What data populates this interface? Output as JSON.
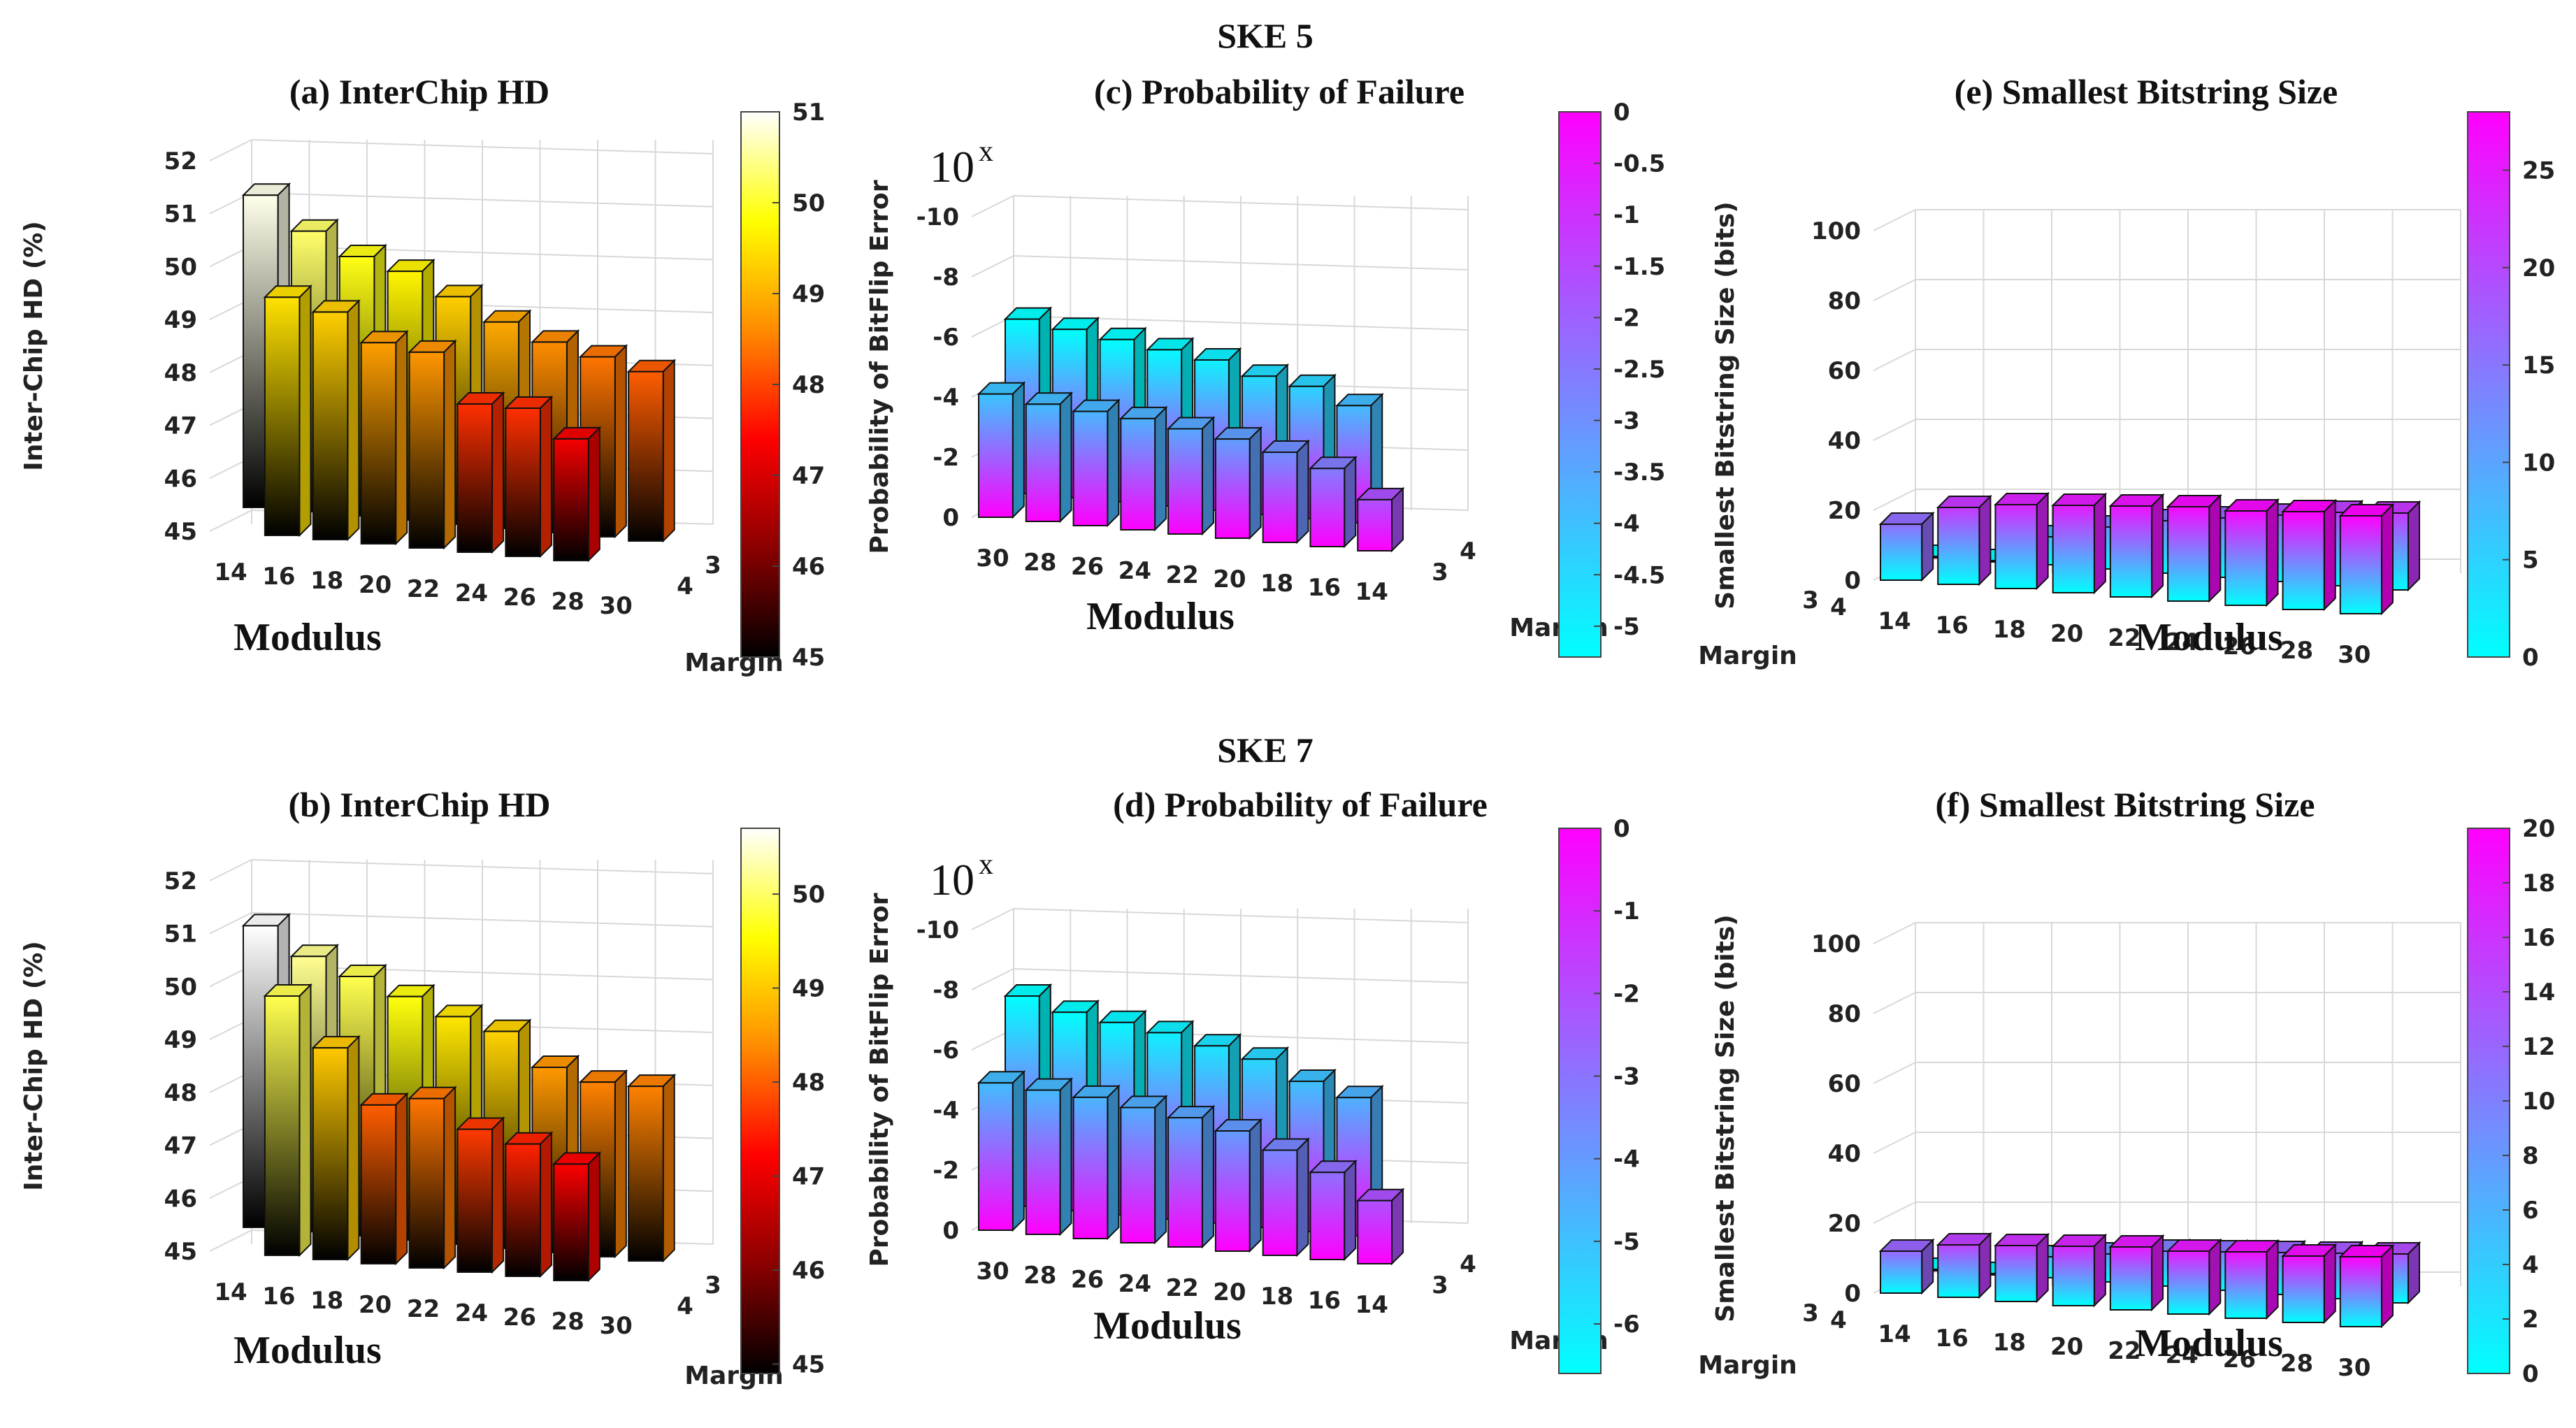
{
  "figure": {
    "group_titles": [
      "SKE 5",
      "SKE 7"
    ],
    "power_label": "10",
    "power_exponent": "x"
  },
  "colors": {
    "hot": [
      "#000000",
      "#8b0000",
      "#ff0000",
      "#ff8c00",
      "#ffff00",
      "#ffffff"
    ],
    "cool": [
      "#00ffff",
      "#ff00ff"
    ],
    "edge": "#111111",
    "grid": "#d8d8d8",
    "text": "#111111"
  },
  "chart_data": [
    {
      "id": "a",
      "type": "bar3d",
      "colormap": "hot",
      "title": "(a) InterChip HD",
      "xlabel": "Modulus",
      "ylabel": "Inter-Chip HD (%)",
      "zlabel": "Margin",
      "moduli": [
        "14",
        "16",
        "18",
        "20",
        "22",
        "24",
        "26",
        "28",
        "30"
      ],
      "margins": [
        "4",
        "3"
      ],
      "zlim": [
        45,
        52
      ],
      "zticks": [
        "45",
        "46",
        "47",
        "48",
        "49",
        "50",
        "51",
        "52"
      ],
      "series": [
        {
          "name": "Margin 3",
          "values": [
            50.9,
            50.3,
            49.9,
            49.7,
            49.3,
            48.9,
            48.6,
            48.4,
            48.2
          ]
        },
        {
          "name": "Margin 4",
          "values": [
            null,
            49.5,
            49.3,
            48.8,
            48.7,
            47.8,
            47.8,
            47.3,
            null
          ]
        }
      ],
      "colorbar": {
        "ticks": [
          "51",
          "50",
          "49",
          "48",
          "47",
          "46",
          "45"
        ],
        "min": 45,
        "max": 51
      }
    },
    {
      "id": "b",
      "type": "bar3d",
      "colormap": "hot",
      "title": "(b) InterChip HD",
      "xlabel": "Modulus",
      "ylabel": "Inter-Chip HD (%)",
      "zlabel": "Margin",
      "moduli": [
        "14",
        "16",
        "18",
        "20",
        "22",
        "24",
        "26",
        "28",
        "30"
      ],
      "margins": [
        "4",
        "3"
      ],
      "zlim": [
        45,
        52
      ],
      "zticks": [
        "45",
        "46",
        "47",
        "48",
        "49",
        "50",
        "51",
        "52"
      ],
      "series": [
        {
          "name": "Margin 3",
          "values": [
            50.7,
            50.2,
            49.9,
            49.6,
            49.3,
            49.1,
            48.5,
            48.3,
            48.3
          ]
        },
        {
          "name": "Margin 4",
          "values": [
            null,
            49.9,
            49.0,
            48.0,
            48.2,
            47.7,
            47.5,
            47.2,
            null
          ]
        }
      ],
      "colorbar": {
        "ticks": [
          "50",
          "49",
          "48",
          "47",
          "46",
          "45"
        ],
        "min": 44.9,
        "max": 50.7
      }
    },
    {
      "id": "c",
      "type": "bar3d",
      "colormap": "cool",
      "title": "(c) Probability of Failure",
      "xlabel": "Modulus",
      "ylabel": "Probability of BitFlip Error",
      "zlabel": "Margin",
      "moduli": [
        "30",
        "28",
        "26",
        "24",
        "22",
        "20",
        "18",
        "16",
        "14"
      ],
      "margins": [
        "3",
        "4"
      ],
      "zlim": [
        0,
        -10
      ],
      "zticks": [
        "0",
        "-2",
        "-4",
        "-6",
        "-8",
        "-10"
      ],
      "series": [
        {
          "name": "Margin 4",
          "values": [
            -5.8,
            -5.6,
            -5.4,
            -5.2,
            -5.0,
            -4.6,
            -4.4,
            -3.9,
            null
          ]
        },
        {
          "name": "Margin 3",
          "values": [
            -4.1,
            -3.9,
            -3.8,
            -3.7,
            -3.5,
            -3.3,
            -3.0,
            -2.6,
            -1.7
          ]
        }
      ],
      "colorbar": {
        "ticks": [
          "0",
          "-0.5",
          "-1",
          "-1.5",
          "-2",
          "-2.5",
          "-3",
          "-3.5",
          "-4",
          "-4.5",
          "-5"
        ],
        "min": -5.3,
        "max": 0
      }
    },
    {
      "id": "d",
      "type": "bar3d",
      "colormap": "cool",
      "title": "(d) Probability of Failure",
      "xlabel": "Modulus",
      "ylabel": "Probability of BitFlip Error",
      "zlabel": "Margin",
      "moduli": [
        "30",
        "28",
        "26",
        "24",
        "22",
        "20",
        "18",
        "16",
        "14"
      ],
      "margins": [
        "3",
        "4"
      ],
      "zlim": [
        0,
        -10
      ],
      "zticks": [
        "0",
        "-2",
        "-4",
        "-6",
        "-8",
        "-10"
      ],
      "series": [
        {
          "name": "Margin 4",
          "values": [
            -7.0,
            -6.6,
            -6.4,
            -6.2,
            -5.9,
            -5.6,
            -5.0,
            -4.6,
            null
          ]
        },
        {
          "name": "Margin 3",
          "values": [
            -4.9,
            -4.8,
            -4.7,
            -4.5,
            -4.3,
            -4.0,
            -3.5,
            -2.9,
            -2.1
          ]
        }
      ],
      "colorbar": {
        "ticks": [
          "0",
          "-1",
          "-2",
          "-3",
          "-4",
          "-5",
          "-6"
        ],
        "min": -6.6,
        "max": 0
      }
    },
    {
      "id": "e",
      "type": "bar3d",
      "colormap": "cool",
      "title": "(e) Smallest Bitstring Size",
      "xlabel": "Modulus",
      "ylabel": "Smallest Bitstring Size (bits)",
      "zlabel": "Margin",
      "moduli": [
        "14",
        "16",
        "18",
        "20",
        "22",
        "24",
        "26",
        "28",
        "30"
      ],
      "margins": [
        "3",
        "4"
      ],
      "zlim": [
        0,
        100
      ],
      "zticks": [
        "0",
        "20",
        "40",
        "60",
        "80",
        "100"
      ],
      "series": [
        {
          "name": "Margin 4",
          "values": [
            0,
            0,
            8,
            12,
            15,
            17,
            19,
            21,
            22
          ]
        },
        {
          "name": "Margin 3",
          "values": [
            16,
            22,
            24,
            25,
            26,
            27,
            27,
            28,
            28
          ]
        }
      ],
      "colorbar": {
        "ticks": [
          "0",
          "5",
          "10",
          "15",
          "20",
          "25"
        ],
        "min": 0,
        "max": 28
      }
    },
    {
      "id": "f",
      "type": "bar3d",
      "colormap": "cool",
      "title": "(f) Smallest Bitstring Size",
      "xlabel": "Modulus",
      "ylabel": "Smallest Bitstring Size (bits)",
      "zlabel": "Margin",
      "moduli": [
        "14",
        "16",
        "18",
        "20",
        "22",
        "24",
        "26",
        "28",
        "30"
      ],
      "margins": [
        "3",
        "4"
      ],
      "zlim": [
        0,
        100
      ],
      "zticks": [
        "0",
        "20",
        "40",
        "60",
        "80",
        "100"
      ],
      "series": [
        {
          "name": "Margin 4",
          "values": [
            0,
            0,
            6,
            8,
            10,
            11,
            12,
            13,
            14
          ]
        },
        {
          "name": "Margin 3",
          "values": [
            12,
            15,
            16,
            17,
            18,
            18,
            19,
            19,
            20
          ]
        }
      ],
      "colorbar": {
        "ticks": [
          "0",
          "2",
          "4",
          "6",
          "8",
          "10",
          "12",
          "14",
          "16",
          "18",
          "20"
        ],
        "min": 0,
        "max": 20
      }
    }
  ]
}
